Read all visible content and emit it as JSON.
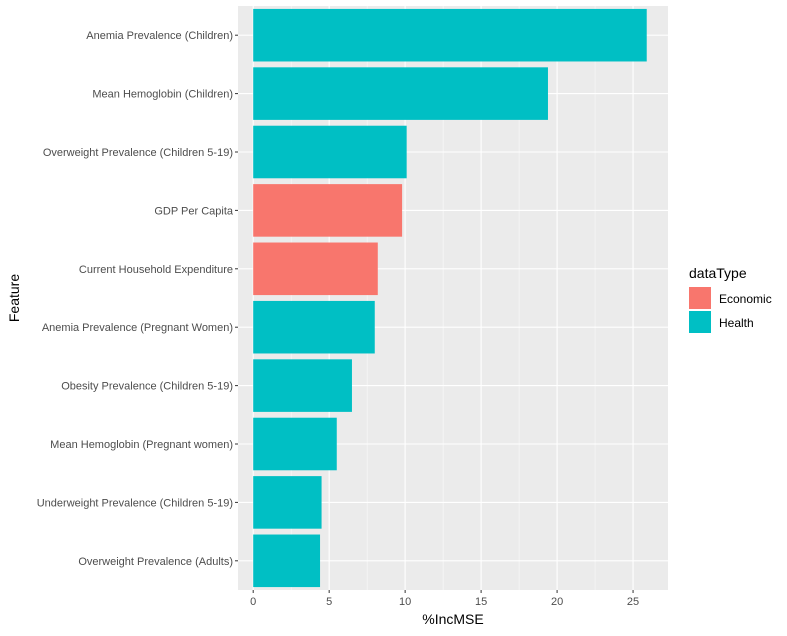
{
  "chart_data": {
    "type": "bar",
    "orientation": "horizontal",
    "xlabel": "%IncMSE",
    "ylabel": "Feature",
    "xlim": [
      -1,
      27.3
    ],
    "x_ticks": [
      0,
      5,
      10,
      15,
      20,
      25
    ],
    "x_tick_labels": [
      "0",
      "5",
      "10",
      "15",
      "20",
      "25"
    ],
    "grid": true,
    "legend": {
      "title": "dataType",
      "placement": "right",
      "entries": [
        {
          "label": "Economic",
          "color": "#F8766D"
        },
        {
          "label": "Health",
          "color": "#00BFC4"
        }
      ]
    },
    "categories": [
      "Anemia Prevalence (Children)",
      "Mean Hemoglobin (Children)",
      "Overweight Prevalence (Children 5-19)",
      "GDP Per Capita",
      "Current Household Expenditure",
      "Anemia Prevalence (Pregnant Women)",
      "Obesity Prevalence (Children 5-19)",
      "Mean Hemoglobin (Pregnant women)",
      "Underweight Prevalence (Children 5-19)",
      "Overweight Prevalence (Adults)"
    ],
    "values": [
      25.9,
      19.4,
      10.1,
      9.8,
      8.2,
      8.0,
      6.5,
      5.5,
      4.5,
      4.4
    ],
    "data_type": [
      "Health",
      "Health",
      "Health",
      "Economic",
      "Economic",
      "Health",
      "Health",
      "Health",
      "Health",
      "Health"
    ]
  },
  "colors": {
    "panel_background": "#EBEBEB",
    "grid_major": "#FFFFFF",
    "economic": "#F8766D",
    "health": "#00BFC4"
  }
}
